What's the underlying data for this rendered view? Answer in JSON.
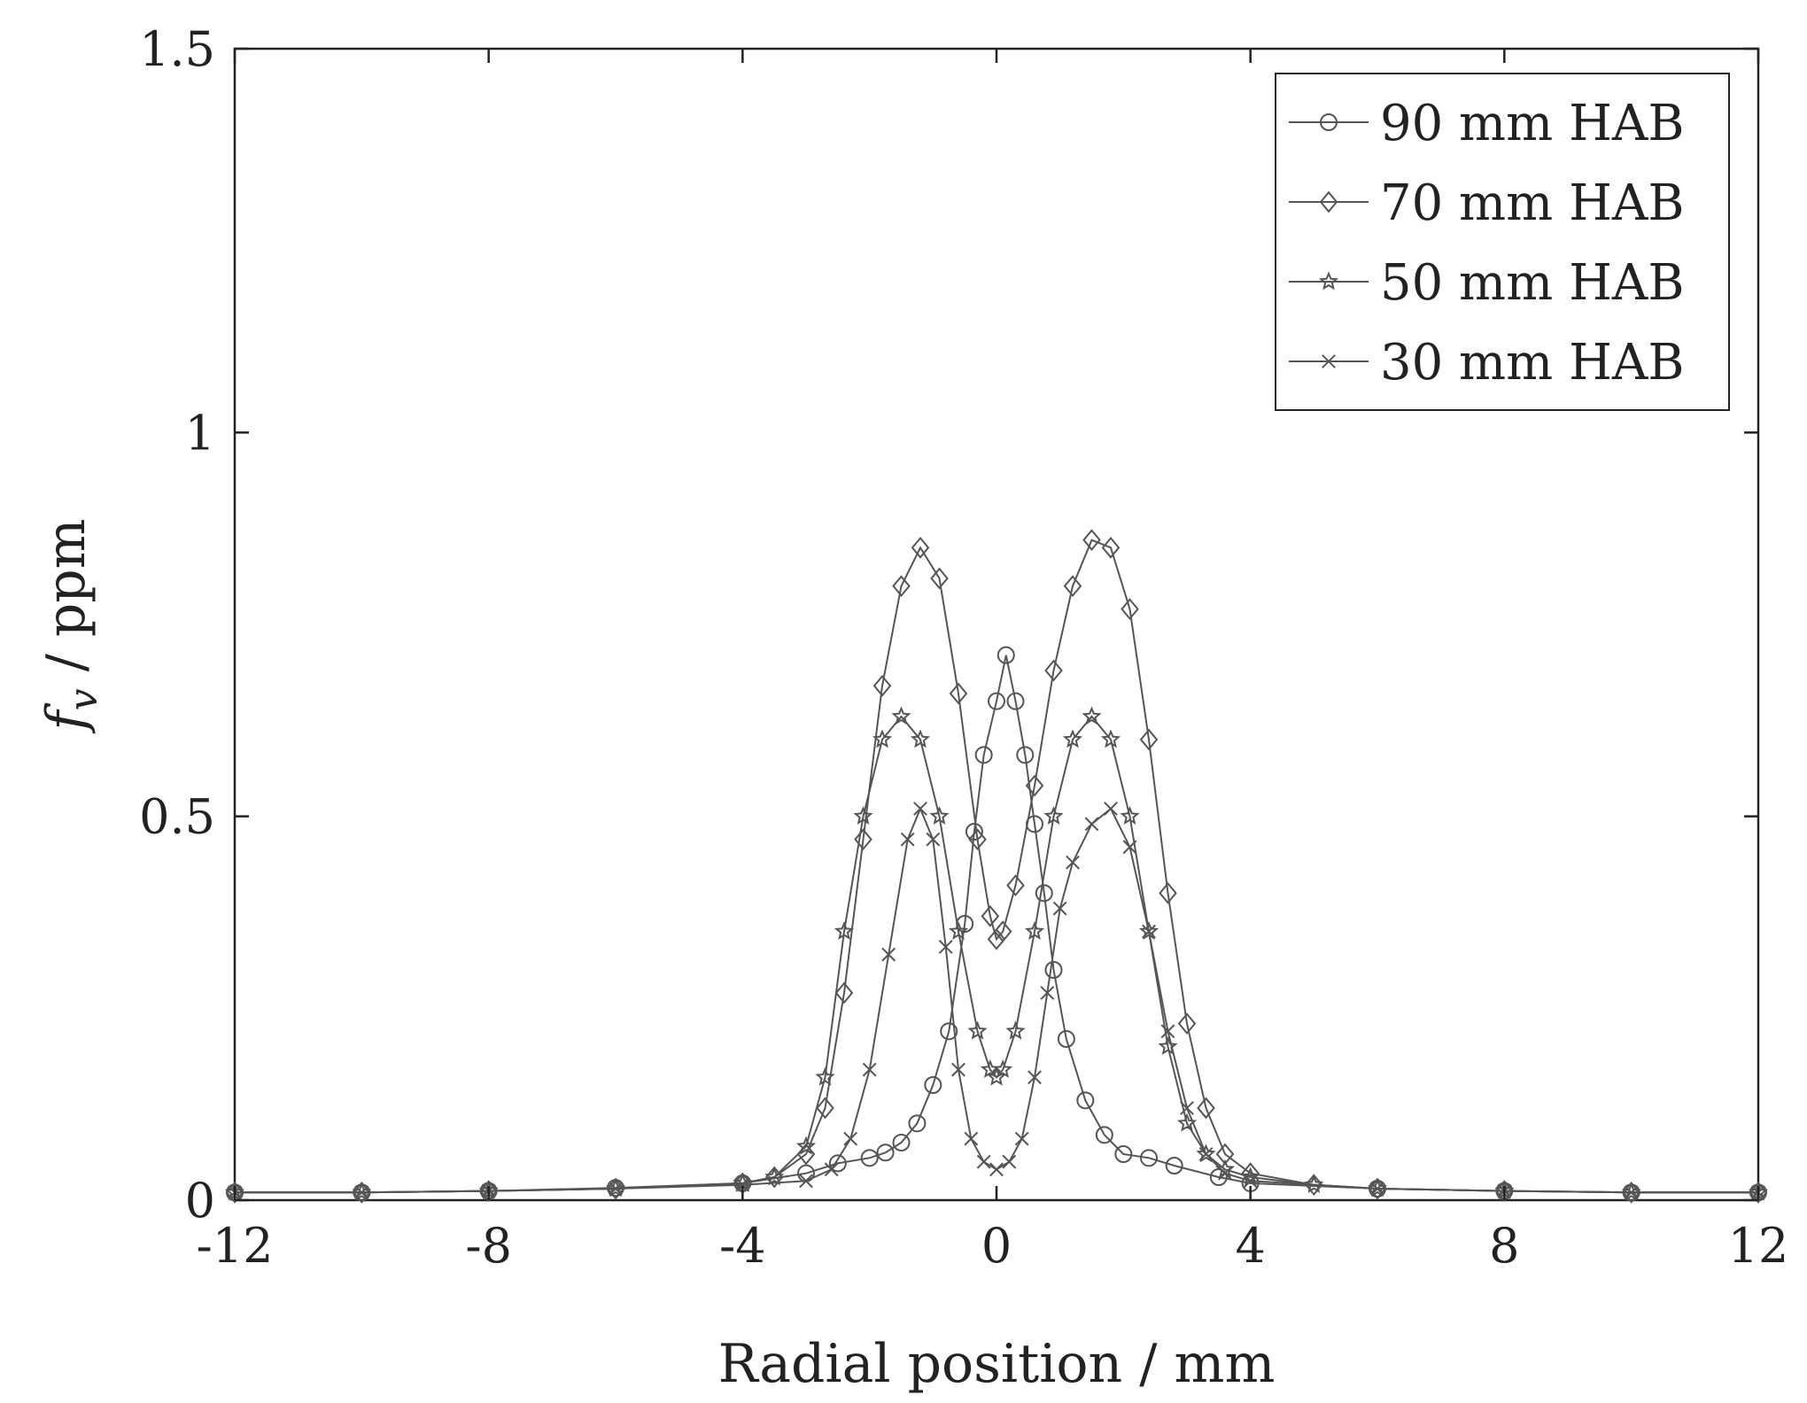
{
  "chart_data": {
    "type": "line",
    "xlabel": "Radial position / mm",
    "ylabel": {
      "main": "f",
      "sub": "v",
      "suffix": " / ppm"
    },
    "xlim": [
      -12,
      12
    ],
    "ylim": [
      0,
      1.5
    ],
    "xticks": [
      -12,
      -8,
      -4,
      0,
      4,
      8,
      12
    ],
    "yticks": [
      0,
      0.5,
      1,
      1.5
    ],
    "xtick_labels": [
      "-12",
      "-8",
      "-4",
      "0",
      "4",
      "8",
      "12"
    ],
    "ytick_labels": [
      "0",
      "0.5",
      "1",
      "1.5"
    ],
    "legend_position": "top-right",
    "grid": false,
    "color": "#555555",
    "series": [
      {
        "name": "90 mm HAB",
        "marker": "circle",
        "x": [
          -12,
          -10,
          -8,
          -6,
          -4,
          -3,
          -2.5,
          -2,
          -1.75,
          -1.5,
          -1.25,
          -1,
          -0.75,
          -0.5,
          -0.35,
          -0.2,
          0,
          0.15,
          0.3,
          0.45,
          0.6,
          0.75,
          0.9,
          1.1,
          1.4,
          1.7,
          2.0,
          2.4,
          2.8,
          3.5,
          4,
          6,
          8,
          10,
          12
        ],
        "y": [
          0.01,
          0.01,
          0.012,
          0.016,
          0.022,
          0.035,
          0.048,
          0.055,
          0.062,
          0.075,
          0.1,
          0.15,
          0.22,
          0.36,
          0.48,
          0.58,
          0.65,
          0.71,
          0.65,
          0.58,
          0.49,
          0.4,
          0.3,
          0.21,
          0.13,
          0.085,
          0.06,
          0.055,
          0.045,
          0.03,
          0.022,
          0.015,
          0.012,
          0.01,
          0.01
        ]
      },
      {
        "name": "70 mm HAB",
        "marker": "diamond",
        "x": [
          -12,
          -10,
          -8,
          -6,
          -4,
          -3.5,
          -3,
          -2.7,
          -2.4,
          -2.1,
          -1.8,
          -1.5,
          -1.2,
          -0.9,
          -0.6,
          -0.3,
          -0.1,
          0,
          0.1,
          0.3,
          0.6,
          0.9,
          1.2,
          1.5,
          1.8,
          2.1,
          2.4,
          2.7,
          3.0,
          3.3,
          3.6,
          4,
          5,
          6,
          8,
          10,
          12
        ],
        "y": [
          0.01,
          0.01,
          0.012,
          0.015,
          0.022,
          0.03,
          0.06,
          0.12,
          0.27,
          0.47,
          0.67,
          0.8,
          0.85,
          0.81,
          0.66,
          0.47,
          0.37,
          0.34,
          0.35,
          0.41,
          0.54,
          0.69,
          0.8,
          0.86,
          0.85,
          0.77,
          0.6,
          0.4,
          0.23,
          0.12,
          0.06,
          0.035,
          0.02,
          0.015,
          0.012,
          0.01,
          0.01
        ]
      },
      {
        "name": "50 mm HAB",
        "marker": "star",
        "x": [
          -12,
          -10,
          -8,
          -6,
          -4,
          -3.5,
          -3,
          -2.7,
          -2.4,
          -2.1,
          -1.8,
          -1.5,
          -1.2,
          -0.9,
          -0.6,
          -0.3,
          -0.1,
          0,
          0.1,
          0.3,
          0.6,
          0.9,
          1.2,
          1.5,
          1.8,
          2.1,
          2.4,
          2.7,
          3.0,
          3.3,
          3.6,
          4,
          5,
          6,
          8,
          10,
          12
        ],
        "y": [
          0.01,
          0.01,
          0.012,
          0.015,
          0.022,
          0.03,
          0.07,
          0.16,
          0.35,
          0.5,
          0.6,
          0.63,
          0.6,
          0.5,
          0.35,
          0.22,
          0.17,
          0.16,
          0.17,
          0.22,
          0.35,
          0.5,
          0.6,
          0.63,
          0.6,
          0.5,
          0.35,
          0.2,
          0.1,
          0.06,
          0.04,
          0.03,
          0.02,
          0.015,
          0.012,
          0.01,
          0.01
        ]
      },
      {
        "name": "30 mm HAB",
        "marker": "x",
        "x": [
          -12,
          -10,
          -8,
          -6,
          -4,
          -3,
          -2.6,
          -2.3,
          -2.0,
          -1.7,
          -1.4,
          -1.2,
          -1.0,
          -0.8,
          -0.6,
          -0.4,
          -0.2,
          0,
          0.2,
          0.4,
          0.6,
          0.8,
          1.0,
          1.2,
          1.5,
          1.8,
          2.1,
          2.4,
          2.7,
          3.0,
          3.3,
          3.6,
          4,
          6,
          8,
          10,
          12
        ],
        "y": [
          0.01,
          0.01,
          0.012,
          0.015,
          0.02,
          0.025,
          0.04,
          0.08,
          0.17,
          0.32,
          0.47,
          0.51,
          0.47,
          0.33,
          0.17,
          0.08,
          0.05,
          0.04,
          0.05,
          0.08,
          0.16,
          0.27,
          0.38,
          0.44,
          0.49,
          0.51,
          0.46,
          0.35,
          0.22,
          0.12,
          0.06,
          0.035,
          0.025,
          0.015,
          0.012,
          0.01,
          0.01
        ]
      }
    ]
  }
}
